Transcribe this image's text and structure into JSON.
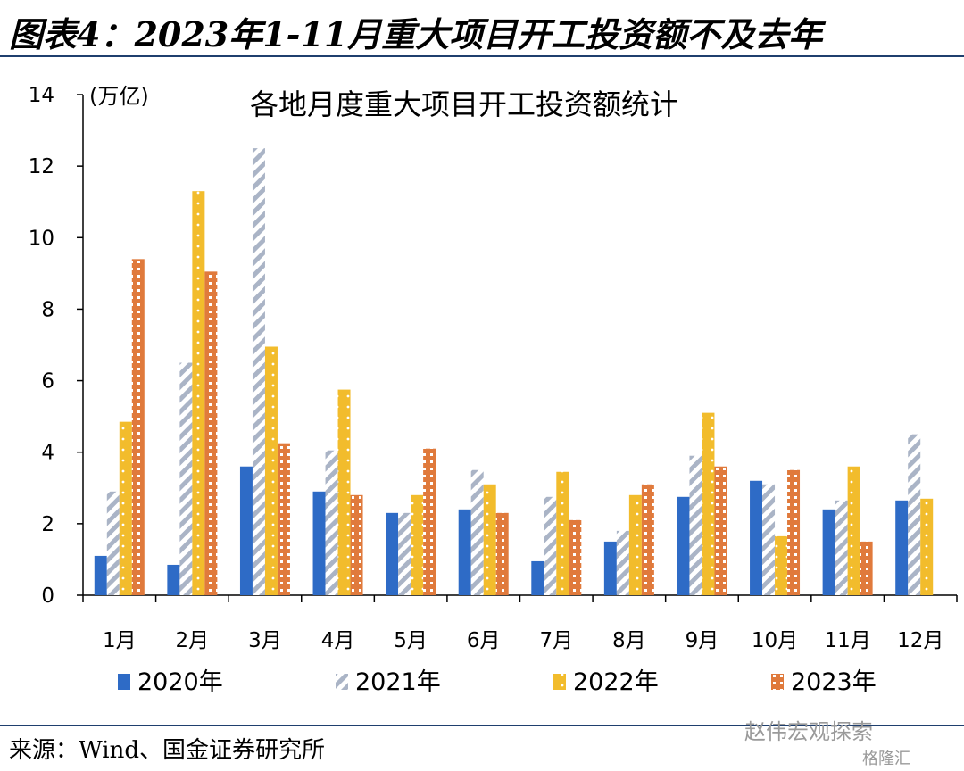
{
  "figure_title": "图表4：2023年1-11月重大项目开工投资额不及去年",
  "source_note": "来源：Wind、国金证券研究所",
  "watermark": "赵伟宏观探索",
  "watermark_brand": "格隆汇",
  "colors": {
    "2020": "#2e6bc6",
    "2021": "#aab4c6",
    "2022": "#f2bc2c",
    "2023": "#e07a3c",
    "rule": "#1f3f6e"
  },
  "chart_data": {
    "type": "bar",
    "title": "各地月度重大项目开工投资额统计",
    "ylabel": "(万亿)",
    "ylim": [
      0,
      14
    ],
    "yticks": [
      "0",
      "2",
      "4",
      "6",
      "8",
      "10",
      "12",
      "14"
    ],
    "grid": false,
    "legend_position": "bottom",
    "categories": [
      "1月",
      "2月",
      "3月",
      "4月",
      "5月",
      "6月",
      "7月",
      "8月",
      "9月",
      "10月",
      "11月",
      "12月"
    ],
    "series": [
      {
        "name": "2020年",
        "values": [
          1.1,
          0.85,
          3.6,
          2.9,
          2.3,
          2.4,
          0.95,
          1.5,
          2.75,
          3.2,
          2.4,
          2.65
        ]
      },
      {
        "name": "2021年",
        "values": [
          2.9,
          6.5,
          12.5,
          4.05,
          2.3,
          3.5,
          2.75,
          1.8,
          3.9,
          3.1,
          2.65,
          4.5
        ]
      },
      {
        "name": "2022年",
        "values": [
          4.85,
          11.3,
          6.95,
          5.75,
          2.8,
          3.1,
          3.45,
          2.8,
          5.1,
          1.65,
          3.6,
          2.7
        ]
      },
      {
        "name": "2023年",
        "values": [
          9.4,
          9.05,
          4.25,
          2.8,
          4.1,
          2.3,
          2.1,
          3.1,
          3.6,
          3.5,
          1.5,
          null
        ]
      }
    ]
  }
}
